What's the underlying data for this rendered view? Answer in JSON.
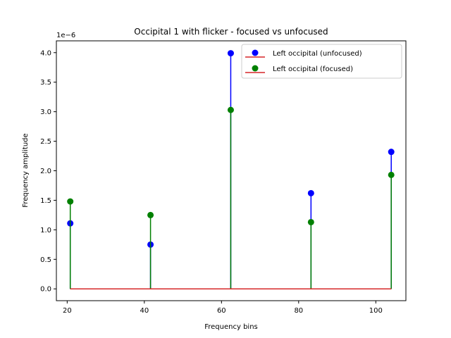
{
  "chart_data": {
    "type": "stem",
    "title": "Occipital 1 with flicker - focused vs unfocused",
    "xlabel": "Frequency bins",
    "ylabel": "Frequency amplitude",
    "y_offset_label": "1e−6",
    "y_scale": 1e-06,
    "xlim": [
      17.2,
      107.8
    ],
    "ylim": [
      -0.2,
      4.2
    ],
    "x_ticks": [
      20,
      40,
      60,
      80,
      100
    ],
    "x_tick_labels": [
      "20",
      "40",
      "60",
      "80",
      "100"
    ],
    "y_ticks": [
      0.0,
      0.5,
      1.0,
      1.5,
      2.0,
      2.5,
      3.0,
      3.5,
      4.0
    ],
    "y_tick_labels": [
      "0.0",
      "0.5",
      "1.0",
      "1.5",
      "2.0",
      "2.5",
      "3.0",
      "3.5",
      "4.0"
    ],
    "grid": false,
    "legend_position": "top-right",
    "baseline": 0,
    "baseline_color": "#d62728",
    "series": [
      {
        "name": "Left occipital (unfocused)",
        "color": "#0000ff",
        "x": [
          20.8,
          41.6,
          62.4,
          83.2,
          104.0
        ],
        "y": [
          1.11,
          0.75,
          3.99,
          1.62,
          2.32
        ]
      },
      {
        "name": "Left occipital (focused)",
        "color": "#008000",
        "x": [
          20.8,
          41.6,
          62.4,
          83.2,
          104.0
        ],
        "y": [
          1.48,
          1.25,
          3.03,
          1.13,
          1.93
        ]
      }
    ]
  }
}
